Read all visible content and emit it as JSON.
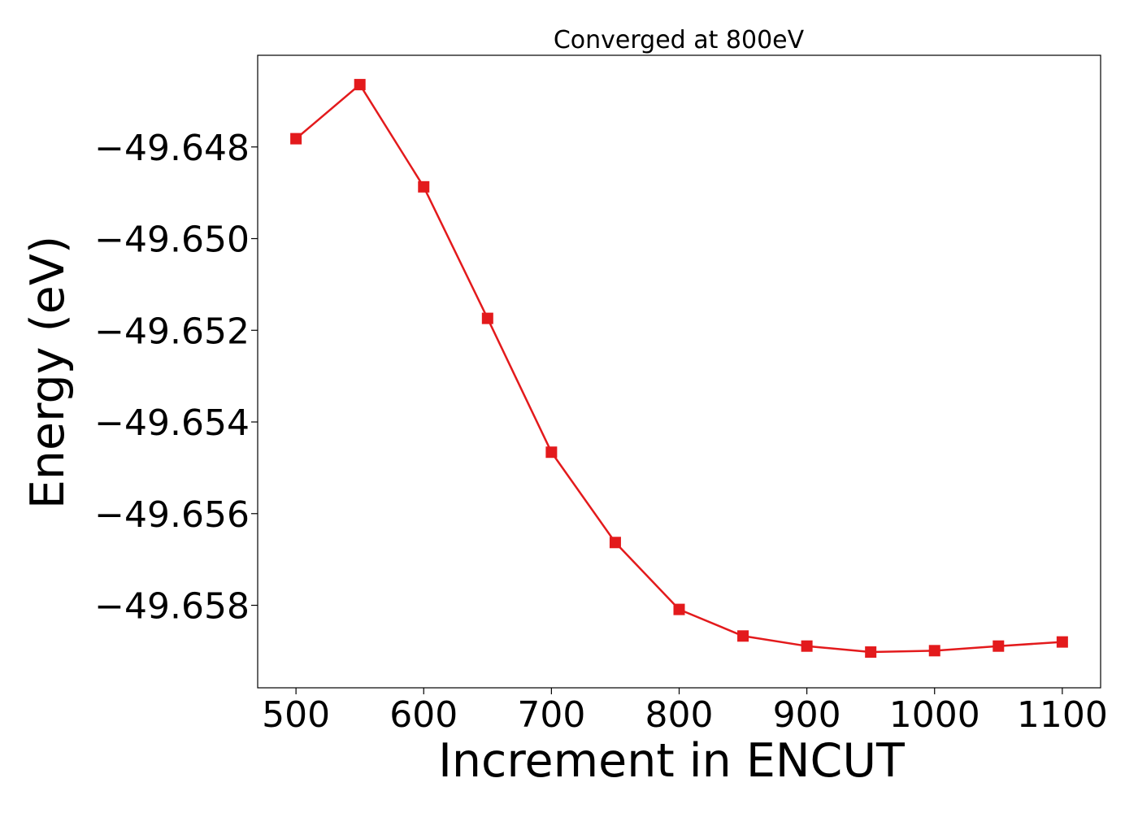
{
  "chart_data": {
    "type": "line",
    "title": "Converged at 800eV",
    "xlabel": "Increment in ENCUT",
    "ylabel": "Energy (eV)",
    "xlim": [
      470,
      1130
    ],
    "ylim": [
      -49.6598,
      -49.646
    ],
    "x_ticks": [
      500,
      600,
      700,
      800,
      900,
      1000,
      1100
    ],
    "y_ticks": [
      -49.648,
      -49.65,
      -49.652,
      -49.654,
      -49.656,
      -49.658
    ],
    "y_tick_labels": [
      "−49.648",
      "−49.650",
      "−49.652",
      "−49.654",
      "−49.656",
      "−49.658"
    ],
    "grid": false,
    "series": [
      {
        "color": "#e31a1c",
        "marker": "square",
        "x": [
          500,
          550,
          600,
          650,
          700,
          750,
          800,
          850,
          900,
          950,
          1000,
          1050,
          1100
        ],
        "y": [
          -49.64782,
          -49.64664,
          -49.64887,
          -49.65174,
          -49.65466,
          -49.65663,
          -49.65809,
          -49.65867,
          -49.65889,
          -49.65902,
          -49.65899,
          -49.65889,
          -49.6588
        ]
      }
    ]
  }
}
